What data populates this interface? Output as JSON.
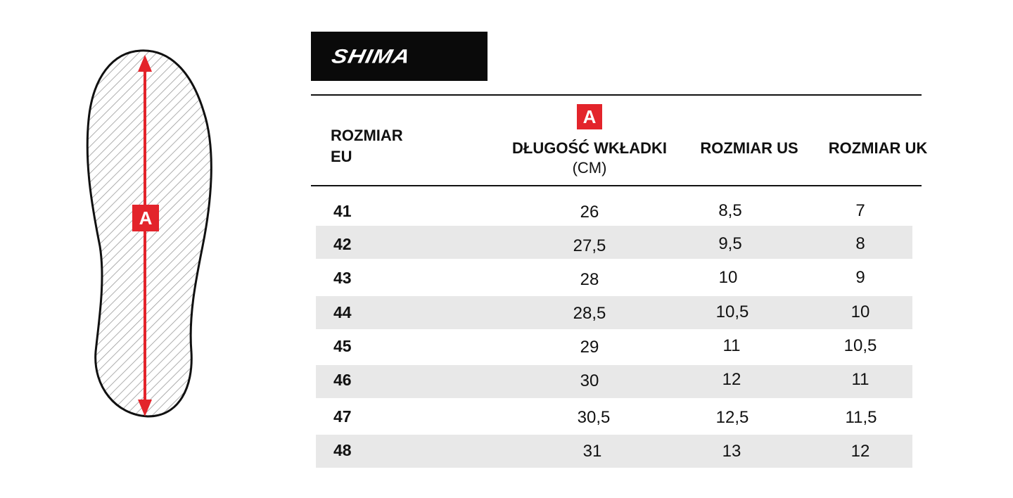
{
  "brand": {
    "logo_text": "SHIMA"
  },
  "diagram": {
    "label": "A",
    "arrow_color": "#e3242b"
  },
  "table": {
    "headers": {
      "eu_line1": "ROZMIAR",
      "eu_line2": "EU",
      "length_badge": "A",
      "length_line1": "DŁUGOŚĆ WKŁADKI",
      "length_line2": "(CM)",
      "us": "ROZMIAR US",
      "uk": "ROZMIAR UK"
    },
    "rows": [
      {
        "eu": "41",
        "cm": "26",
        "us": "8,5",
        "uk": "7"
      },
      {
        "eu": "42",
        "cm": "27,5",
        "us": "9,5",
        "uk": "8"
      },
      {
        "eu": "43",
        "cm": "28",
        "us": "10",
        "uk": "9"
      },
      {
        "eu": "44",
        "cm": "28,5",
        "us": "10,5",
        "uk": "10"
      },
      {
        "eu": "45",
        "cm": "29",
        "us": "11",
        "uk": "10,5"
      },
      {
        "eu": "46",
        "cm": "30",
        "us": "12",
        "uk": "11"
      },
      {
        "eu": "47",
        "cm": "30,5",
        "us": "12,5",
        "uk": "11,5"
      },
      {
        "eu": "48",
        "cm": "31",
        "us": "13",
        "uk": "12"
      }
    ],
    "stripe_color": "#e8e8e8"
  }
}
